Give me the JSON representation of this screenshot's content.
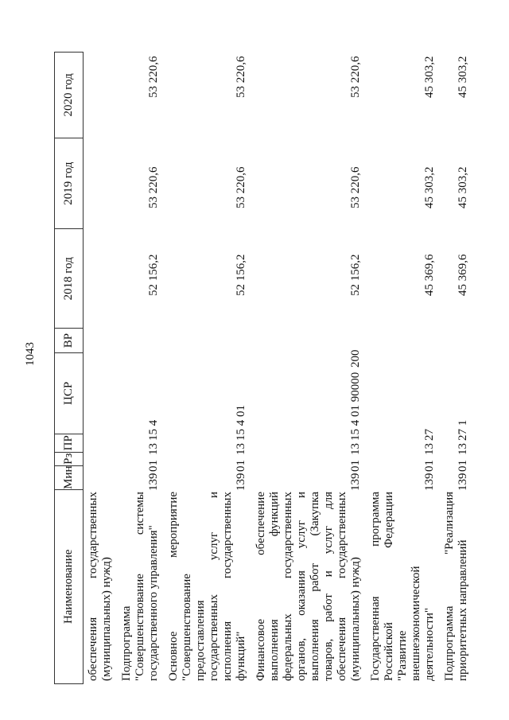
{
  "page_number": "1043",
  "columns": [
    "Наименование",
    "Мин",
    "Рз",
    "ПР",
    "ЦСР",
    "ВР",
    "2018 год",
    "2019 год",
    "2020 год"
  ],
  "rows": [
    {
      "name_lines": [
        "обеспечения государственных",
        "(муниципальных) нужд)"
      ],
      "min": "",
      "rz": "",
      "pr": "",
      "csr": "",
      "vr": "",
      "y2018": "",
      "y2019": "",
      "y2020": ""
    },
    {
      "name_lines": [
        "Подпрограмма",
        "\"Совершенствование системы",
        "государственного управления\""
      ],
      "min": "139",
      "rz": "01",
      "pr": "13",
      "csr": "15 4",
      "vr": "",
      "y2018": "52 156,2",
      "y2019": "53 220,6",
      "y2020": "53 220,6"
    },
    {
      "name_lines": [
        "Основное мероприятие",
        "\"Совершенствование",
        "предоставления",
        "государственных услуг и",
        "исполнения государственных",
        "функций\""
      ],
      "min": "139",
      "rz": "01",
      "pr": "13",
      "csr": "15 4 01",
      "vr": "",
      "y2018": "52 156,2",
      "y2019": "53 220,6",
      "y2020": "53 220,6"
    },
    {
      "name_lines": [
        "Финансовое обеспечение",
        "выполнения функций",
        "федеральных государственных",
        "органов, оказания услуг и",
        "выполнения работ (Закупка",
        "товаров, работ и услуг для",
        "обеспечения государственных",
        "(муниципальных) нужд)"
      ],
      "min": "139",
      "rz": "01",
      "pr": "13",
      "csr": "15 4 01 90000",
      "vr": "200",
      "y2018": "52 156,2",
      "y2019": "53 220,6",
      "y2020": "53 220,6"
    },
    {
      "name_lines": [
        "Государственная программа",
        "Российской Федерации",
        "\"Развитие",
        "внешнеэкономической",
        "деятельности\""
      ],
      "min": "139",
      "rz": "01",
      "pr": "13",
      "csr": "27",
      "vr": "",
      "y2018": "45 369,6",
      "y2019": "45 303,2",
      "y2020": "45 303,2"
    },
    {
      "name_lines": [
        "Подпрограмма \"Реализация",
        "приоритетных направлений"
      ],
      "min": "139",
      "rz": "01",
      "pr": "13",
      "csr": "27 1",
      "vr": "",
      "y2018": "45 369,6",
      "y2019": "45 303,2",
      "y2020": "45 303,2"
    }
  ]
}
